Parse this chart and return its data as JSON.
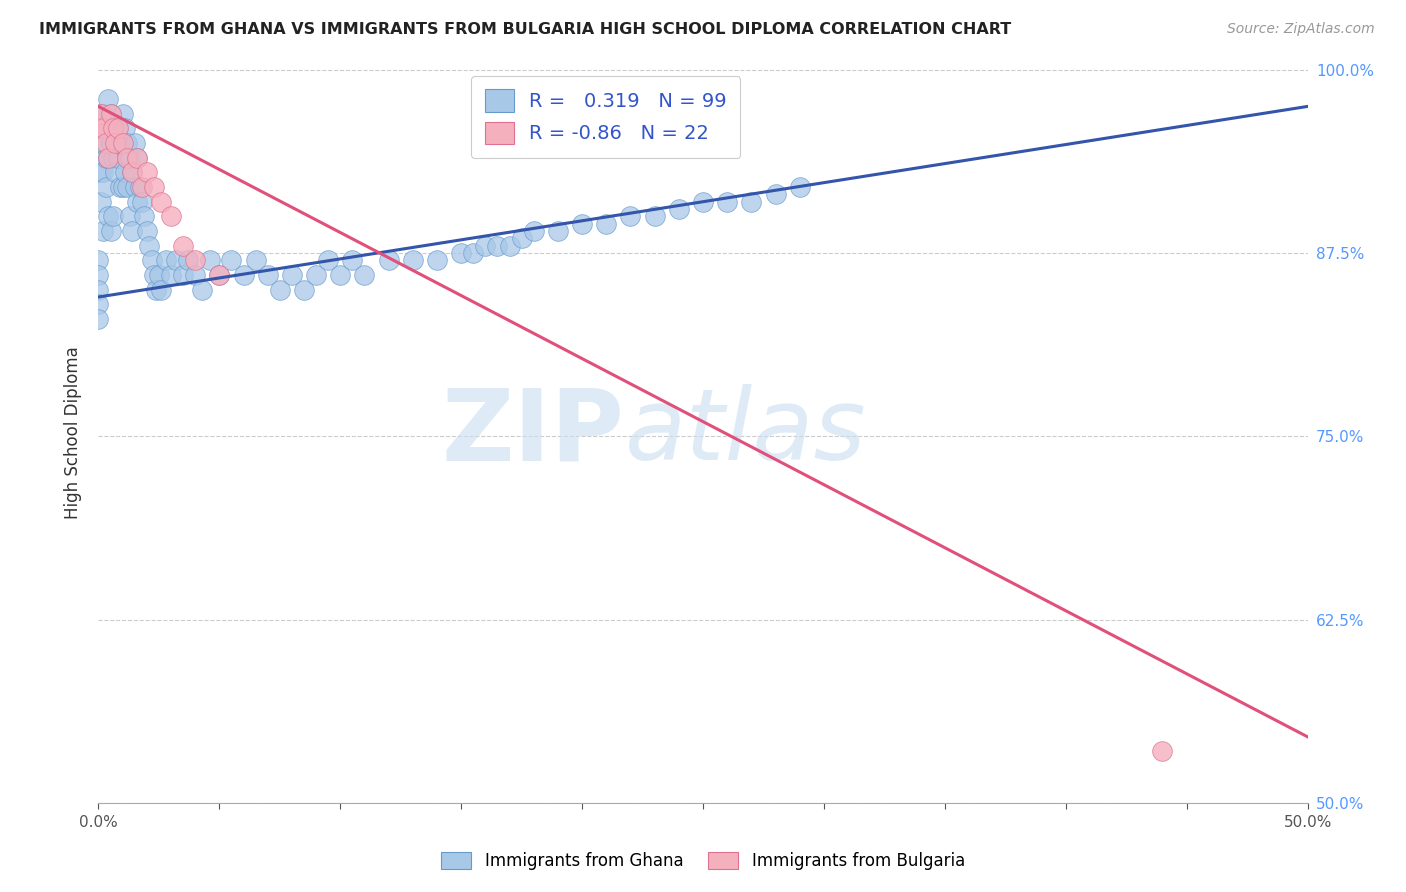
{
  "title": "IMMIGRANTS FROM GHANA VS IMMIGRANTS FROM BULGARIA HIGH SCHOOL DIPLOMA CORRELATION CHART",
  "source": "Source: ZipAtlas.com",
  "ylabel": "High School Diploma",
  "xlim": [
    0.0,
    0.5
  ],
  "ylim": [
    0.5,
    1.005
  ],
  "ghana_color": "#a8c8e8",
  "ghana_edge": "#6699cc",
  "bulgaria_color": "#f5b0be",
  "bulgaria_edge": "#e07090",
  "trend_ghana_color": "#3355aa",
  "trend_bulgaria_color": "#e0507a",
  "ghana_R": 0.319,
  "ghana_N": 99,
  "bulgaria_R": -0.86,
  "bulgaria_N": 22,
  "right_tick_color": "#5599ff",
  "legend_text_color": "#3355cc",
  "ghana_x": [
    0.0,
    0.0,
    0.0,
    0.0,
    0.0,
    0.001,
    0.001,
    0.001,
    0.001,
    0.002,
    0.002,
    0.002,
    0.002,
    0.003,
    0.003,
    0.003,
    0.004,
    0.004,
    0.004,
    0.004,
    0.005,
    0.005,
    0.005,
    0.006,
    0.006,
    0.006,
    0.007,
    0.007,
    0.008,
    0.008,
    0.009,
    0.009,
    0.01,
    0.01,
    0.01,
    0.011,
    0.011,
    0.012,
    0.012,
    0.013,
    0.013,
    0.014,
    0.014,
    0.015,
    0.015,
    0.016,
    0.016,
    0.017,
    0.018,
    0.019,
    0.02,
    0.021,
    0.022,
    0.023,
    0.024,
    0.025,
    0.026,
    0.028,
    0.03,
    0.032,
    0.035,
    0.037,
    0.04,
    0.043,
    0.046,
    0.05,
    0.055,
    0.06,
    0.065,
    0.07,
    0.075,
    0.08,
    0.085,
    0.09,
    0.095,
    0.1,
    0.105,
    0.11,
    0.12,
    0.13,
    0.14,
    0.15,
    0.155,
    0.16,
    0.165,
    0.17,
    0.175,
    0.18,
    0.19,
    0.2,
    0.21,
    0.22,
    0.23,
    0.24,
    0.25,
    0.26,
    0.27,
    0.28,
    0.29
  ],
  "ghana_y": [
    0.87,
    0.86,
    0.85,
    0.84,
    0.83,
    0.97,
    0.95,
    0.93,
    0.91,
    0.97,
    0.95,
    0.93,
    0.89,
    0.96,
    0.94,
    0.92,
    0.98,
    0.96,
    0.94,
    0.9,
    0.97,
    0.95,
    0.89,
    0.96,
    0.94,
    0.9,
    0.95,
    0.93,
    0.96,
    0.94,
    0.95,
    0.92,
    0.97,
    0.95,
    0.92,
    0.96,
    0.93,
    0.95,
    0.92,
    0.94,
    0.9,
    0.93,
    0.89,
    0.95,
    0.92,
    0.94,
    0.91,
    0.92,
    0.91,
    0.9,
    0.89,
    0.88,
    0.87,
    0.86,
    0.85,
    0.86,
    0.85,
    0.87,
    0.86,
    0.87,
    0.86,
    0.87,
    0.86,
    0.85,
    0.87,
    0.86,
    0.87,
    0.86,
    0.87,
    0.86,
    0.85,
    0.86,
    0.85,
    0.86,
    0.87,
    0.86,
    0.87,
    0.86,
    0.87,
    0.87,
    0.87,
    0.875,
    0.875,
    0.88,
    0.88,
    0.88,
    0.885,
    0.89,
    0.89,
    0.895,
    0.895,
    0.9,
    0.9,
    0.905,
    0.91,
    0.91,
    0.91,
    0.915,
    0.92
  ],
  "bulgaria_x": [
    0.0,
    0.001,
    0.002,
    0.003,
    0.004,
    0.005,
    0.006,
    0.007,
    0.008,
    0.01,
    0.012,
    0.014,
    0.016,
    0.018,
    0.02,
    0.023,
    0.026,
    0.03,
    0.035,
    0.04,
    0.05,
    0.44
  ],
  "bulgaria_y": [
    0.96,
    0.97,
    0.96,
    0.95,
    0.94,
    0.97,
    0.96,
    0.95,
    0.96,
    0.95,
    0.94,
    0.93,
    0.94,
    0.92,
    0.93,
    0.92,
    0.91,
    0.9,
    0.88,
    0.87,
    0.86,
    0.535
  ],
  "ghana_trend_x": [
    0.0,
    0.5
  ],
  "ghana_trend_y": [
    0.845,
    0.975
  ],
  "bulgaria_trend_x": [
    0.0,
    0.5
  ],
  "bulgaria_trend_y": [
    0.975,
    0.545
  ]
}
